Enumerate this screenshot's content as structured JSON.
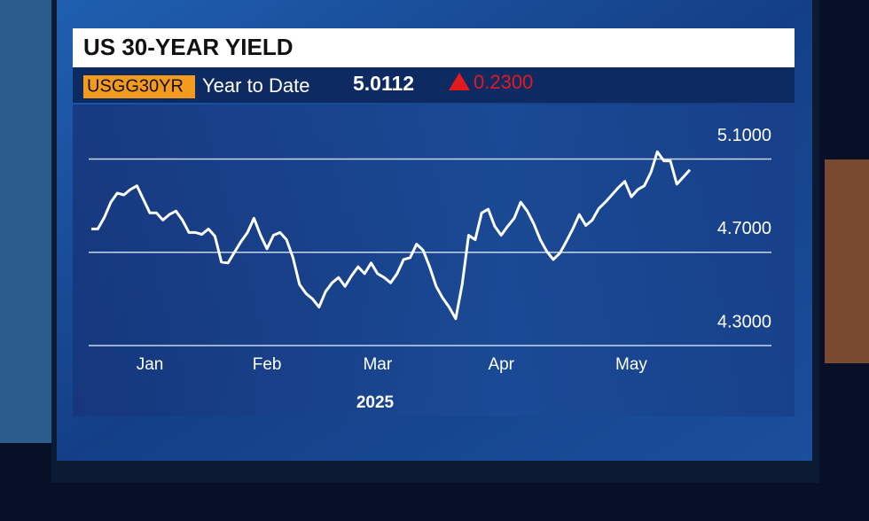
{
  "chart_data": {
    "type": "line",
    "title": "US 30-YEAR YIELD",
    "ticker": "USGG30YR",
    "period": "Year to Date",
    "last_value": "5.0112",
    "change": "0.2300",
    "x_label": "2025",
    "categories": [
      null,
      null,
      null,
      null,
      null,
      null,
      null,
      null,
      null,
      "Jan",
      null,
      null,
      null,
      null,
      null,
      null,
      null,
      null,
      null,
      null,
      null,
      null,
      null,
      null,
      null,
      null,
      null,
      "Feb",
      null,
      null,
      null,
      null,
      null,
      null,
      null,
      null,
      null,
      null,
      null,
      null,
      null,
      null,
      null,
      null,
      "Mar",
      null,
      null,
      null,
      null,
      null,
      null,
      null,
      null,
      null,
      null,
      null,
      null,
      null,
      null,
      null,
      null,
      null,
      null,
      "Apr",
      null,
      null,
      null,
      null,
      null,
      null,
      null,
      null,
      null,
      null,
      null,
      null,
      null,
      null,
      null,
      null,
      null,
      null,
      null,
      "May",
      null,
      null,
      null,
      null,
      null,
      null,
      null,
      null,
      null
    ],
    "values": [
      4.8,
      4.8,
      4.85,
      4.915,
      4.954,
      4.946,
      4.969,
      4.985,
      4.927,
      4.869,
      4.869,
      4.838,
      4.862,
      4.877,
      4.838,
      4.785,
      4.785,
      4.777,
      4.8,
      4.769,
      4.658,
      4.654,
      4.7,
      4.746,
      4.785,
      4.846,
      4.773,
      4.715,
      4.773,
      4.785,
      4.754,
      4.677,
      4.562,
      4.523,
      4.5,
      4.465,
      4.531,
      4.569,
      4.592,
      4.554,
      4.6,
      4.638,
      4.608,
      4.654,
      4.608,
      4.592,
      4.569,
      4.608,
      4.669,
      4.677,
      4.735,
      4.708,
      4.638,
      4.554,
      4.504,
      4.465,
      4.415,
      4.562,
      4.773,
      4.754,
      4.869,
      4.885,
      4.812,
      4.773,
      4.812,
      4.846,
      4.915,
      4.877,
      4.823,
      4.754,
      4.704,
      4.669,
      4.696,
      4.746,
      4.8,
      4.862,
      4.815,
      4.838,
      4.888,
      4.915,
      4.946,
      4.977,
      5.004,
      4.938,
      4.969,
      4.985,
      5.042,
      5.131,
      5.092,
      5.092,
      4.992,
      5.023,
      5.054
    ],
    "color": "#ffffff",
    "ylim": [
      4.3,
      5.25
    ],
    "yticks": [
      {
        "value": 4.3,
        "label": "4.3000"
      },
      {
        "value": 4.7,
        "label": "4.7000"
      },
      {
        "value": 5.1,
        "label": "5.1000"
      }
    ],
    "grid": true
  }
}
